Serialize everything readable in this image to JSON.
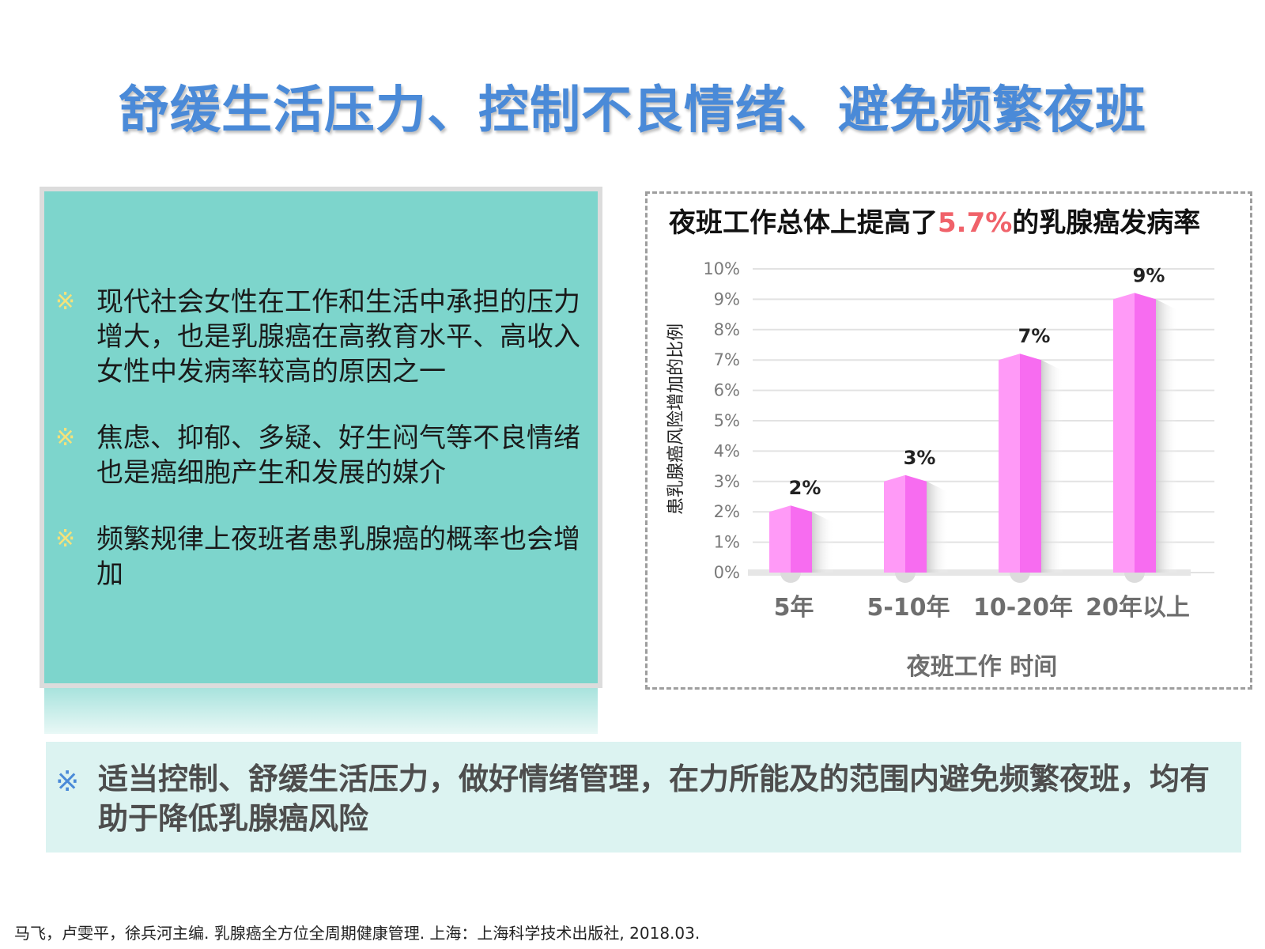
{
  "page": {
    "title": "舒缓生活压力、控制不良情绪、避免频繁夜班",
    "bullets": [
      {
        "mark": "※",
        "text": "现代社会女性在工作和生活中承担的压力增大，也是乳腺癌在高教育水平、高收入女性中发病率较高的原因之一"
      },
      {
        "mark": "※",
        "text": "焦虑、抑郁、多疑、好生闷气等不良情绪也是癌细胞产生和发展的媒介"
      },
      {
        "mark": "※",
        "text": "频繁规律上夜班者患乳腺癌的概率也会增加"
      }
    ],
    "summary_mark": "※",
    "summary": "适当控制、舒缓生活压力，做好情绪管理，在力所能及的范围内避免频繁夜班，均有助于降低乳腺癌风险",
    "footnote": "马飞，卢雯平，徐兵河主编. 乳腺癌全方位全周期健康管理. 上海：上海科学技术出版社, 2018.03."
  },
  "chart_data": {
    "type": "bar",
    "title_prefix": "夜班工作总体上提高了",
    "title_highlight": "5.7%",
    "title_suffix": "的乳腺癌发病率",
    "categories": [
      "5年",
      "5-10年",
      "10-20年",
      "20年以上"
    ],
    "values": [
      2,
      3,
      7,
      9
    ],
    "data_labels": [
      "2%",
      "3%",
      "7%",
      "9%"
    ],
    "ylabel": "患乳腺癌风险增加的比例",
    "xlabel": "夜班工作 时间",
    "ylim": [
      0,
      10
    ],
    "yticks": [
      "0%",
      "1%",
      "2%",
      "3%",
      "4%",
      "5%",
      "6%",
      "7%",
      "8%",
      "9%",
      "10%"
    ],
    "grid": true,
    "colors": {
      "bar_left": "#ff9af7",
      "bar_right": "#f76cf0",
      "highlight": "#f0626a"
    }
  }
}
